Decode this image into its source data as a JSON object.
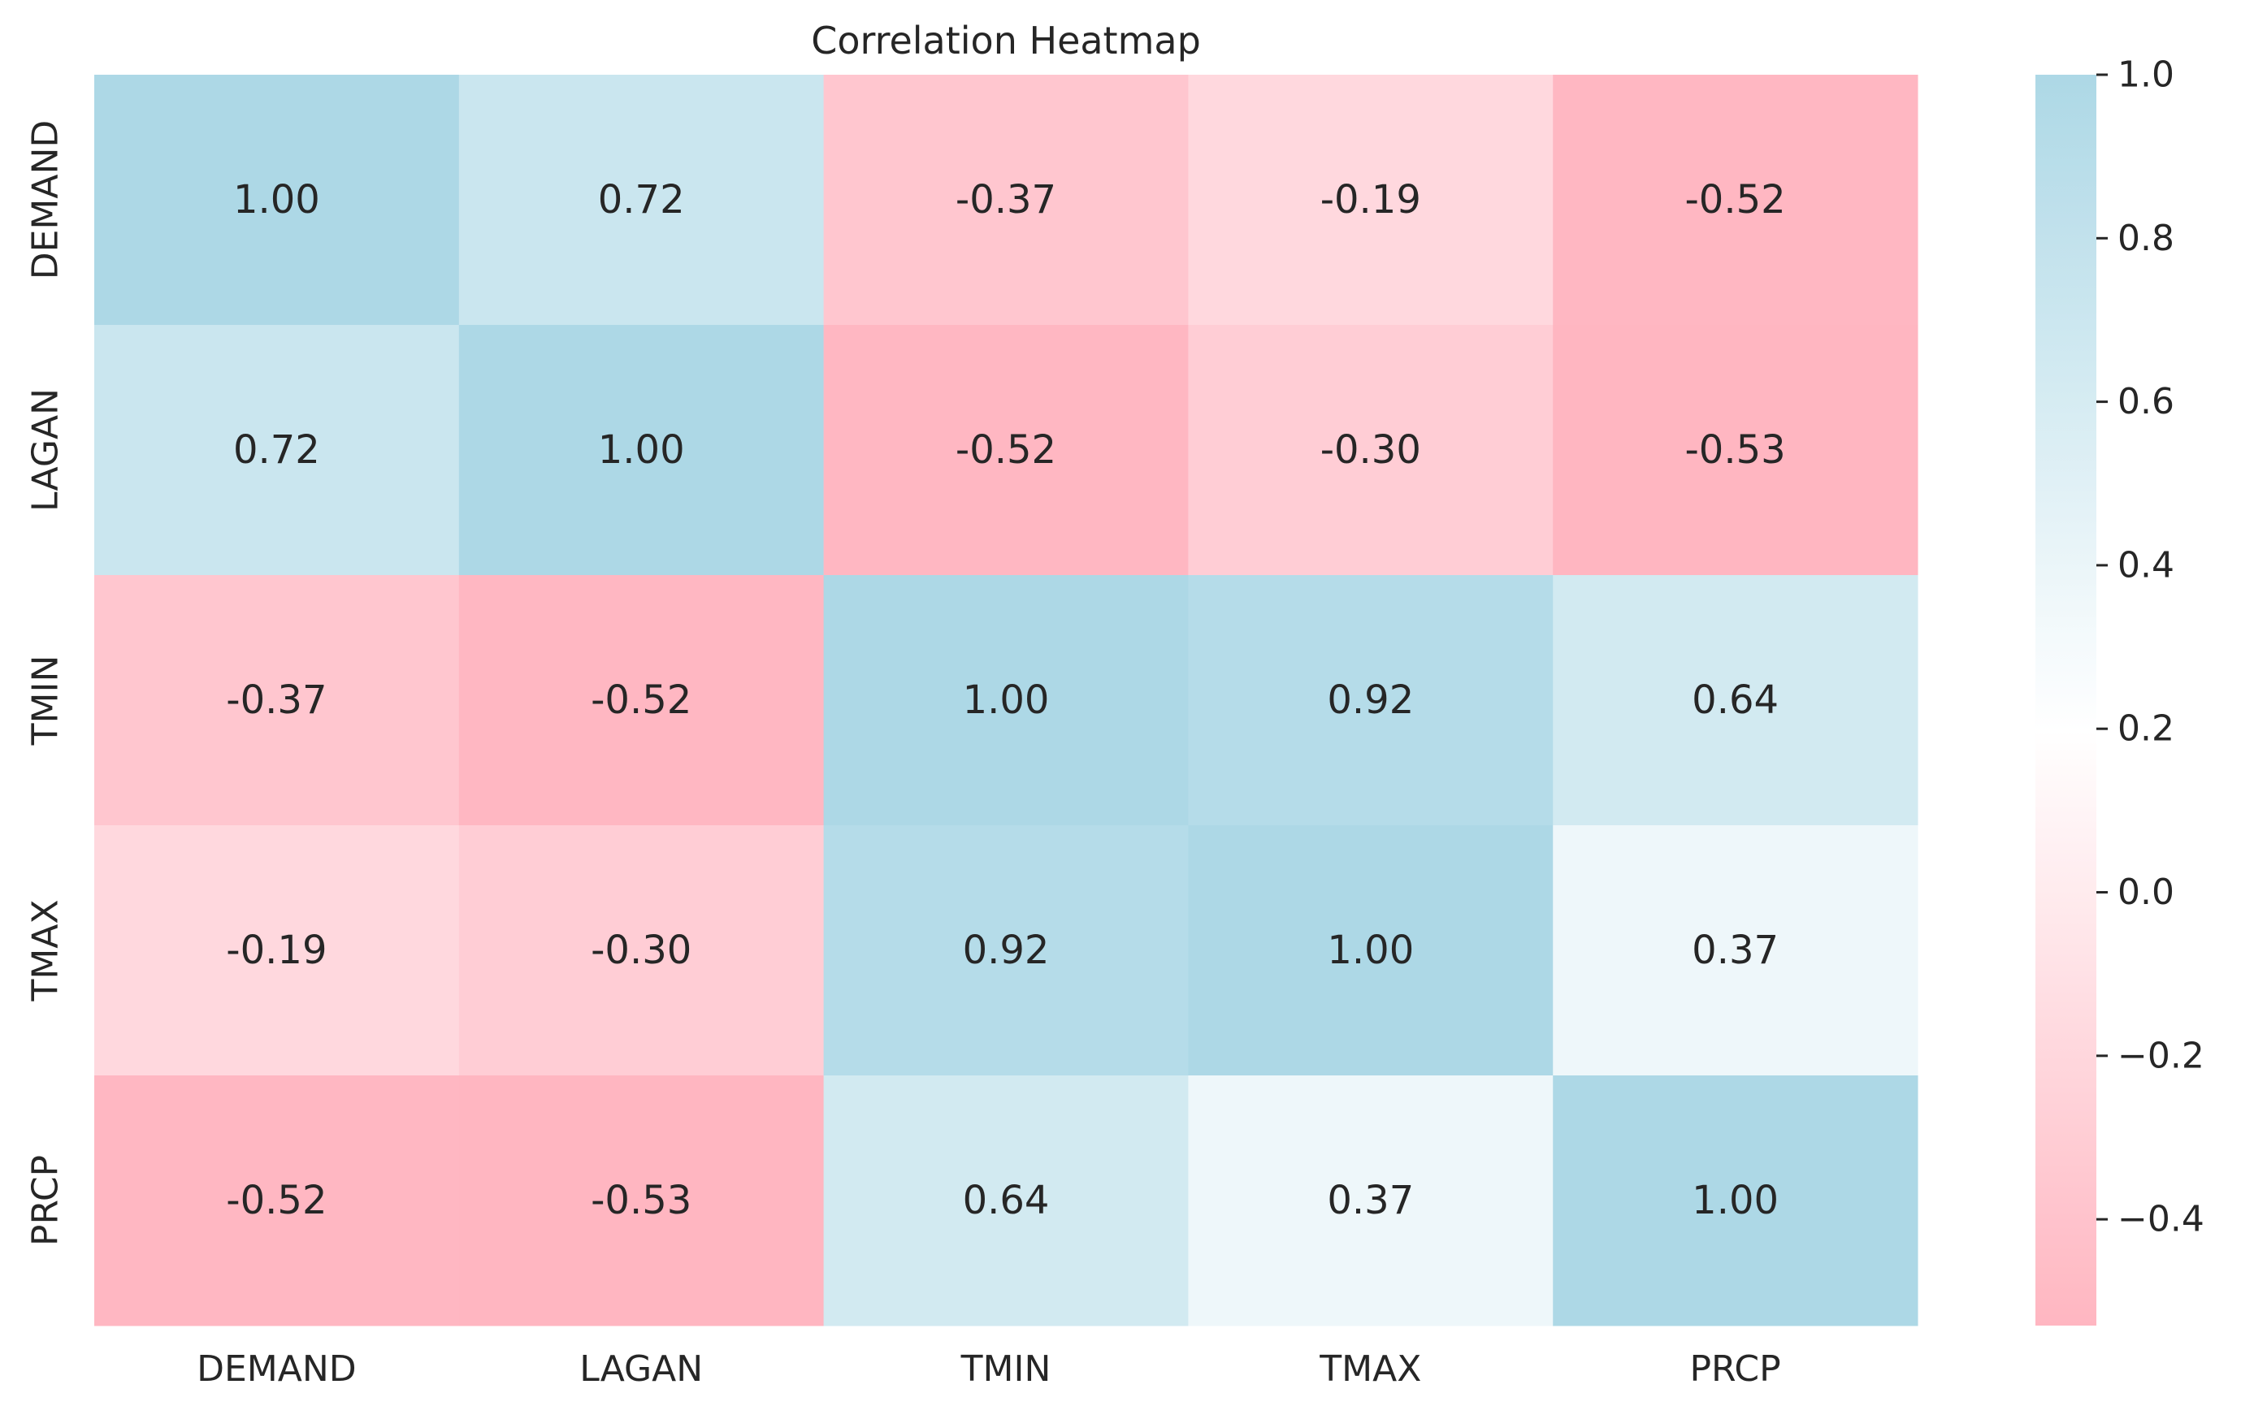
{
  "chart_data": {
    "type": "heatmap",
    "title": "Correlation Heatmap",
    "xlabel": "",
    "ylabel": "",
    "x_categories": [
      "DEMAND",
      "LAGAN",
      "TMIN",
      "TMAX",
      "PRCP"
    ],
    "y_categories": [
      "DEMAND",
      "LAGAN",
      "TMIN",
      "TMAX",
      "PRCP"
    ],
    "values": [
      [
        1.0,
        0.72,
        -0.37,
        -0.19,
        -0.52
      ],
      [
        0.72,
        1.0,
        -0.52,
        -0.3,
        -0.53
      ],
      [
        -0.37,
        -0.52,
        1.0,
        0.92,
        0.64
      ],
      [
        -0.19,
        -0.3,
        0.92,
        1.0,
        0.37
      ],
      [
        -0.52,
        -0.53,
        0.64,
        0.37,
        1.0
      ]
    ],
    "value_format": "2 decimals",
    "colorbar": {
      "vmin": -0.53,
      "vmax": 1.0,
      "ticks": [
        -0.4,
        -0.2,
        0.0,
        0.2,
        0.4,
        0.6,
        0.8,
        1.0
      ],
      "tick_labels": [
        "−0.4",
        "−0.2",
        "0.0",
        "0.2",
        "0.4",
        "0.6",
        "0.8",
        "1.0"
      ],
      "colors": [
        "#FFB6C1",
        "#FFFFFF",
        "#ADD8E6"
      ],
      "center": 0.2
    },
    "grid": false
  }
}
